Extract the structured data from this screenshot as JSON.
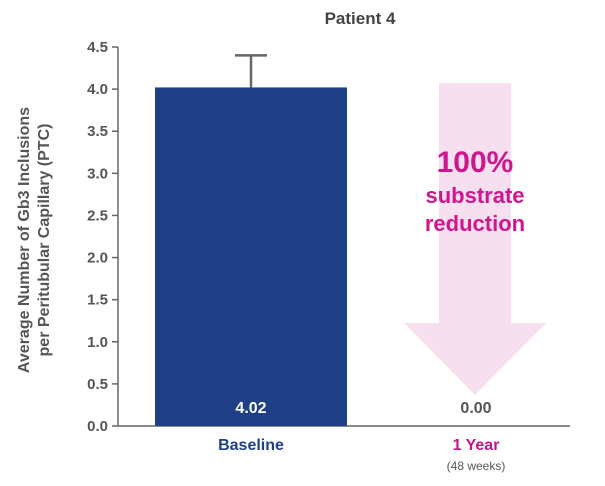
{
  "chart_data": {
    "type": "bar",
    "title": "Patient 4",
    "ylabel": [
      "Average Number of Gb3 Inclusions",
      "per Peritubular Capillary (PTC)"
    ],
    "ylim": [
      0,
      4.5
    ],
    "yticks": [
      0.0,
      0.5,
      1.0,
      1.5,
      2.0,
      2.5,
      3.0,
      3.5,
      4.0,
      4.5
    ],
    "categories": [
      "Baseline",
      "1 Year"
    ],
    "category_subtitles": [
      "",
      "(48 weeks)"
    ],
    "values": [
      4.02,
      0.0
    ],
    "value_labels": [
      "4.02",
      "0.00"
    ],
    "error_bars": [
      {
        "category": "Baseline",
        "upper": 4.4
      }
    ],
    "annotation": {
      "lines": [
        "100%",
        "substrate",
        "reduction"
      ]
    },
    "grid": false,
    "legend": "none",
    "colors": {
      "bar": "#1f3f87",
      "category_label_baseline": "#1f3f87",
      "category_label_year": "#c0168a",
      "annotation_text": "#d0168f",
      "arrow_fill": "#f6e0f0",
      "axis": "#666666",
      "value_label_on_bar": "#ffffff",
      "value_label_zero": "#555555"
    }
  }
}
